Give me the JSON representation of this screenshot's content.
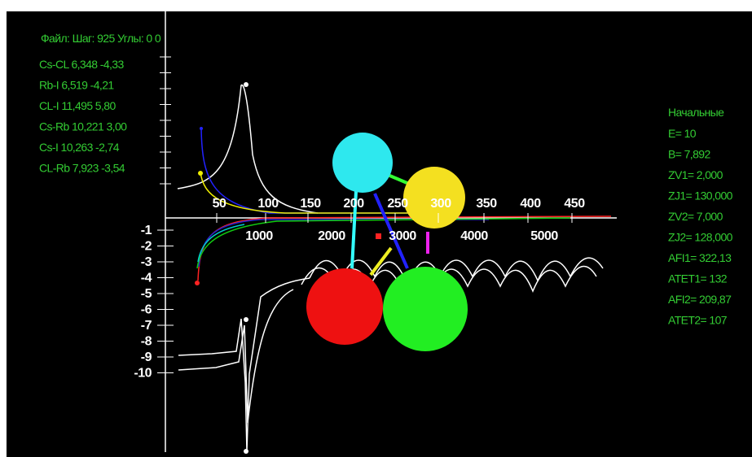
{
  "header": {
    "text": "Файл: Шаг: 925 Углы: 0 0"
  },
  "pairs": [
    "Cs-CL 6,348 -4,33",
    "Rb-I 6,519 -4,21",
    "CL-I 11,495 5,80",
    "Cs-Rb 10,221 3,00",
    "Cs-I 10,263 -2,74",
    "CL-Rb 7,923 -3,54"
  ],
  "params": {
    "title": "Начальные",
    "items": [
      "E= 10",
      "B= 7,892",
      "ZV1= 2,000",
      "ZJ1= 130,000",
      "ZV2= 7,000",
      "ZJ2= 128,000",
      "AFI1= 322,13",
      "ATET1= 132",
      "AFI2= 209,87",
      "ATET2= 107"
    ]
  },
  "axes": {
    "top_ticks": [
      "50",
      "100",
      "150",
      "200",
      "250",
      "300",
      "350",
      "400",
      "450"
    ],
    "bottom_ticks": [
      "1000",
      "2000",
      "3000",
      "4000",
      "5000"
    ],
    "left_ticks": [
      "-1",
      "-2",
      "-3",
      "-4",
      "-5",
      "-6",
      "-7",
      "-8",
      "-9",
      "-10"
    ]
  }
}
